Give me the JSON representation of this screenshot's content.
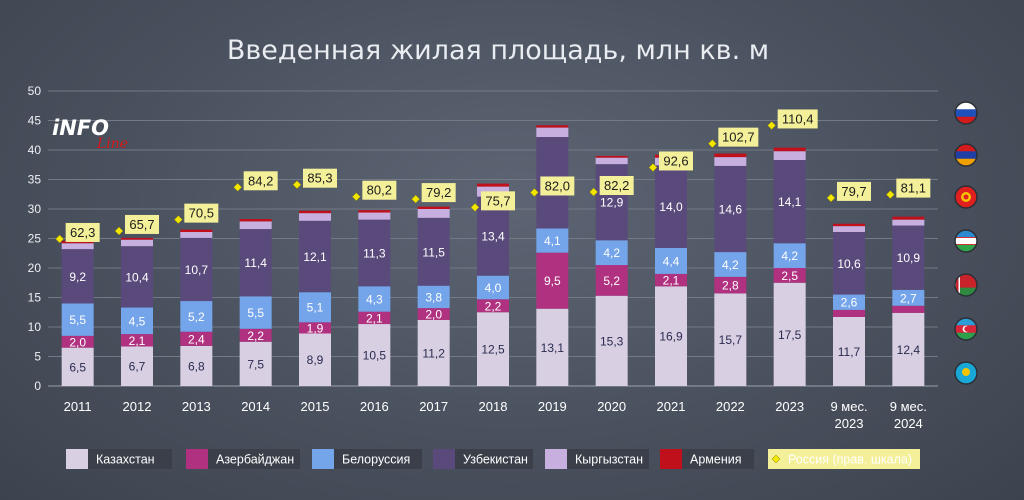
{
  "chart_data": {
    "type": "bar",
    "title": "Введенная жилая площадь, млн кв. м",
    "ylim": [
      0,
      50
    ],
    "yticks": [
      0,
      5,
      10,
      15,
      20,
      25,
      30,
      35,
      40,
      45,
      50
    ],
    "grid": true,
    "legend_placement": "bottom",
    "categories": [
      [
        "2011"
      ],
      [
        "2012"
      ],
      [
        "2013"
      ],
      [
        "2014"
      ],
      [
        "2015"
      ],
      [
        "2016"
      ],
      [
        "2017"
      ],
      [
        "2018"
      ],
      [
        "2019"
      ],
      [
        "2020"
      ],
      [
        "2021"
      ],
      [
        "2022"
      ],
      [
        "2023"
      ],
      [
        "9 мес.",
        "2023"
      ],
      [
        "9 мес.",
        "2024"
      ]
    ],
    "series": [
      {
        "name": "Казахстан",
        "color": "#d8cfe3",
        "label_color": "#2a2a4e",
        "values": [
          6.5,
          6.7,
          6.8,
          7.5,
          8.9,
          10.5,
          11.2,
          12.5,
          13.1,
          15.3,
          16.9,
          15.7,
          17.5,
          11.7,
          12.4
        ],
        "labels": [
          "6,5",
          "6,7",
          "6,8",
          "7,5",
          "8,9",
          "10,5",
          "11,2",
          "12,5",
          "13,1",
          "15,3",
          "16,9",
          "15,7",
          "17,5",
          "11,7",
          "12,4"
        ]
      },
      {
        "name": "Азербайджан",
        "color": "#b0317f",
        "label_color": "#ffffff",
        "values": [
          2.0,
          2.1,
          2.4,
          2.2,
          1.9,
          2.1,
          2.0,
          2.2,
          9.5,
          5.2,
          2.1,
          2.8,
          2.5,
          1.2,
          1.2
        ],
        "labels": [
          "2,0",
          "2,1",
          "2,4",
          "2,2",
          "1,9",
          "2,1",
          "2,0",
          "2,2",
          "9,5",
          "5,2",
          "2,1",
          "2,8",
          "2,5",
          "",
          ""
        ]
      },
      {
        "name": "Белоруссия",
        "color": "#74a4ea",
        "label_color": "#ffffff",
        "values": [
          5.5,
          4.5,
          5.2,
          5.5,
          5.1,
          4.3,
          3.8,
          4.0,
          4.1,
          4.2,
          4.4,
          4.2,
          4.2,
          2.6,
          2.7
        ],
        "labels": [
          "5,5",
          "4,5",
          "5,2",
          "5,5",
          "5,1",
          "4,3",
          "3,8",
          "4,0",
          "4,1",
          "4,2",
          "4,4",
          "4,2",
          "4,2",
          "2,6",
          "2,7"
        ]
      },
      {
        "name": "Узбекистан",
        "color": "#5a4a7c",
        "label_color": "#ffffff",
        "values": [
          9.2,
          10.4,
          10.7,
          11.4,
          12.1,
          11.3,
          11.5,
          13.4,
          15.5,
          12.9,
          14.0,
          14.6,
          14.1,
          10.6,
          10.9
        ],
        "labels": [
          "9,2",
          "10,4",
          "10,7",
          "11,4",
          "12,1",
          "11,3",
          "11,5",
          "13,4",
          "15,5",
          "12,9",
          "14,0",
          "14,6",
          "14,1",
          "10,6",
          "10,9"
        ]
      },
      {
        "name": "Кыргызстан",
        "color": "#c7afe0",
        "label_color": "#2a2a4e",
        "values": [
          1.0,
          1.1,
          1.0,
          1.3,
          1.3,
          1.2,
          1.5,
          1.7,
          1.6,
          1.1,
          1.3,
          1.5,
          1.5,
          1.0,
          1.0
        ],
        "labels": []
      },
      {
        "name": "Армения",
        "color": "#c0101c",
        "label_color": "#ffffff",
        "values": [
          0.4,
          0.3,
          0.4,
          0.4,
          0.4,
          0.4,
          0.4,
          0.5,
          0.4,
          0.3,
          0.5,
          0.6,
          0.6,
          0.4,
          0.5
        ],
        "labels": []
      }
    ],
    "russia": {
      "name": "Россия (прав. шкала)",
      "marker_color": "#f2e600",
      "box_color": "#f4f09a",
      "values": [
        62.3,
        65.7,
        70.5,
        84.2,
        85.3,
        80.2,
        79.2,
        75.7,
        82.0,
        82.2,
        92.6,
        102.7,
        110.4,
        79.7,
        81.1
      ],
      "labels": [
        "62,3",
        "65,7",
        "70,5",
        "84,2",
        "85,3",
        "80,2",
        "79,2",
        "75,7",
        "82,0",
        "82,2",
        "92,6",
        "102,7",
        "110,4",
        "79,7",
        "81,1"
      ]
    },
    "right_axis_flags": [
      "flag-russia-icon",
      "flag-armenia-icon",
      "flag-kyrgyzstan-icon",
      "flag-uzbekistan-icon",
      "flag-belarus-icon",
      "flag-azerbaijan-icon",
      "flag-kazakhstan-icon"
    ]
  },
  "logo": {
    "main": "iNFO",
    "sub": "Line"
  }
}
